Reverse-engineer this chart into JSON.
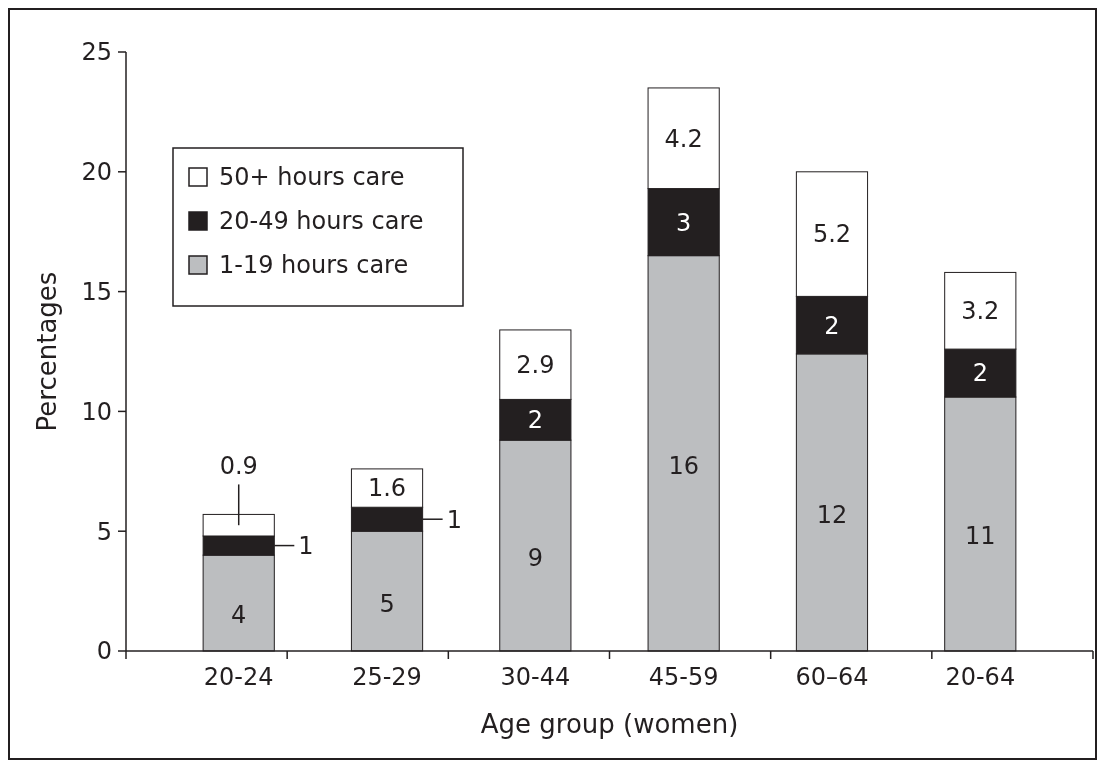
{
  "chart_data": {
    "type": "bar",
    "stacked": true,
    "xlabel": "Age group (women)",
    "ylabel": "Percentages",
    "categories": [
      "20-24",
      "25-29",
      "30-44",
      "45-59",
      "60–64",
      "20-64"
    ],
    "series": [
      {
        "name": "1-19 hours care",
        "color": "#bcbec0",
        "values": [
          4.0,
          5.0,
          8.8,
          16.5,
          12.4,
          10.6
        ],
        "value_labels": [
          "4",
          "5",
          "9",
          "16",
          "12",
          "11"
        ]
      },
      {
        "name": "20-49 hours care",
        "color": "#231f20",
        "values": [
          0.8,
          1.0,
          1.7,
          2.8,
          2.4,
          2.0
        ],
        "value_labels": [
          "1",
          "1",
          "2",
          "3",
          "2",
          "2"
        ]
      },
      {
        "name": "50+ hours care",
        "color": "#ffffff",
        "values": [
          0.9,
          1.6,
          2.9,
          4.2,
          5.2,
          3.2
        ],
        "value_labels": [
          "0.9",
          "1.6",
          "2.9",
          "4.2",
          "5.2",
          "3.2"
        ]
      }
    ],
    "ylim": [
      0,
      25
    ],
    "yticks": [
      0,
      5,
      10,
      15,
      20,
      25
    ],
    "grid": false,
    "legend": "top left"
  }
}
